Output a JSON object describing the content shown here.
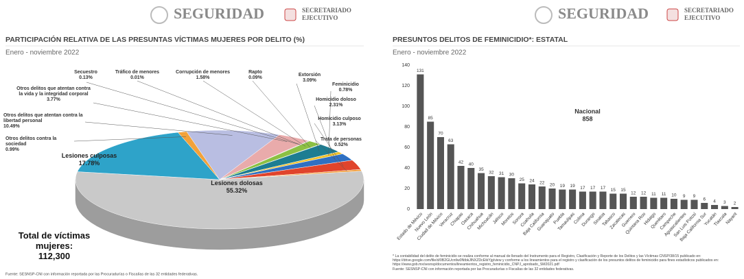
{
  "chart_data": [
    {
      "type": "pie",
      "logos": [
        "SEGURIDAD",
        "SECRETARIADO",
        "EJECUTIVO"
      ],
      "title": "PARTICIPACIÓN RELATIVA DE LAS PRESUNTAS VÍCTIMAS MUJERES POR DELITO (%)",
      "subtitle": "Enero - noviembre 2022",
      "categories": [
        "Lesiones dolosas",
        "Lesiones culposas",
        "Otros delitos contra la sociedad",
        "Otros delitos que atentan contra la libertad personal",
        "Otros delitos que atentan contra la vida y la integridad corporal",
        "Secuestro",
        "Tráfico de menores",
        "Corrupción de menores",
        "Rapto",
        "Extorsión",
        "Feminicidio",
        "Homicidio doloso",
        "Homicidio culposo",
        "Trata de personas"
      ],
      "values": [
        55.32,
        17.78,
        0.99,
        10.49,
        3.77,
        0.13,
        0.01,
        1.58,
        0.09,
        3.09,
        0.78,
        2.31,
        3.13,
        0.52
      ],
      "value_labels": [
        "55.32%",
        "17.78%",
        "0.99%",
        "10.49%",
        "3.77%",
        "0.13%",
        "0.01%",
        "1.58%",
        "0.09%",
        "3.09%",
        "0.78%",
        "2.31%",
        "3.13%",
        "0.52%"
      ],
      "colors": [
        "#c9c9c9",
        "#2ea3c9",
        "#f2a23a",
        "#b9bee2",
        "#e9abab",
        "#8a8a8a",
        "#bdbdbd",
        "#8cc043",
        "#9a9a9a",
        "#1d7d92",
        "#f0c22a",
        "#2f70c2",
        "#e0442c",
        "#f29a32"
      ],
      "total": {
        "label": "Total de víctimas mujeres:",
        "value": 112300,
        "value_label": "112,300"
      },
      "source": "Fuente: SESNSP-CNI con información reportada por las Procuradurías o Fiscalías de las 32 entidades federativas."
    },
    {
      "type": "bar",
      "logos": [
        "SEGURIDAD",
        "SECRETARIADO",
        "EJECUTIVO"
      ],
      "title": "PRESUNTOS DELITOS DE FEMINICIDIO*: ESTATAL",
      "subtitle": "Enero - noviembre 2022",
      "categories": [
        "Estado de México",
        "Nuevo León",
        "Ciudad de México",
        "Veracruz",
        "Chiapas",
        "Oaxaca",
        "Chihuahua",
        "Michoacán",
        "Jalisco",
        "Morelos",
        "Sonora",
        "Coahuila",
        "Baja California",
        "Guanajuato",
        "Puebla",
        "Tamaulipas",
        "Colima",
        "Durango",
        "Sinaloa",
        "Tabasco",
        "Zacatecas",
        "Guerrero",
        "Quintana Roo",
        "Hidalgo",
        "Querétaro",
        "Campeche",
        "Aguascalientes",
        "San Luis Potosí",
        "Baja California Sur",
        "Yucatán",
        "Tlaxcala",
        "Nayarit"
      ],
      "values": [
        131,
        85,
        70,
        63,
        42,
        40,
        35,
        32,
        31,
        30,
        25,
        24,
        22,
        20,
        19,
        19,
        17,
        17,
        17,
        15,
        15,
        12,
        12,
        11,
        11,
        10,
        9,
        9,
        6,
        4,
        3,
        2
      ],
      "color": "#555555",
      "ylim": [
        0,
        140
      ],
      "yticks": [
        0,
        20,
        40,
        60,
        80,
        100,
        120,
        140
      ],
      "annotation": {
        "label": "Nacional",
        "value": 858
      },
      "footnote": "* La contabilidad del delito de feminicidio se realiza conforme al manual de llenado del Instrumento para el Registro, Clasificación y Reporte de los Delitos y las Víctimas CNSP/38/15 publicado en: https://drive.google.com/file/d/0B2GUcntlw0NtbkJlNXZDcEtkYjg/view y conforme a los lineamientos para el registro y clasificación de los presuntos delitos de feminicidio para fines estadísticos publicados en: https://www.gob.mx/sesnsp/documentos/lineamientos_registro_feminicidio_CNPJ_aprobado_SM2021.pdf",
      "source": "Fuente: SESNSP-CNI con información reportada por las Procuradurías o Fiscalías de las 32 entidades federativas."
    }
  ]
}
